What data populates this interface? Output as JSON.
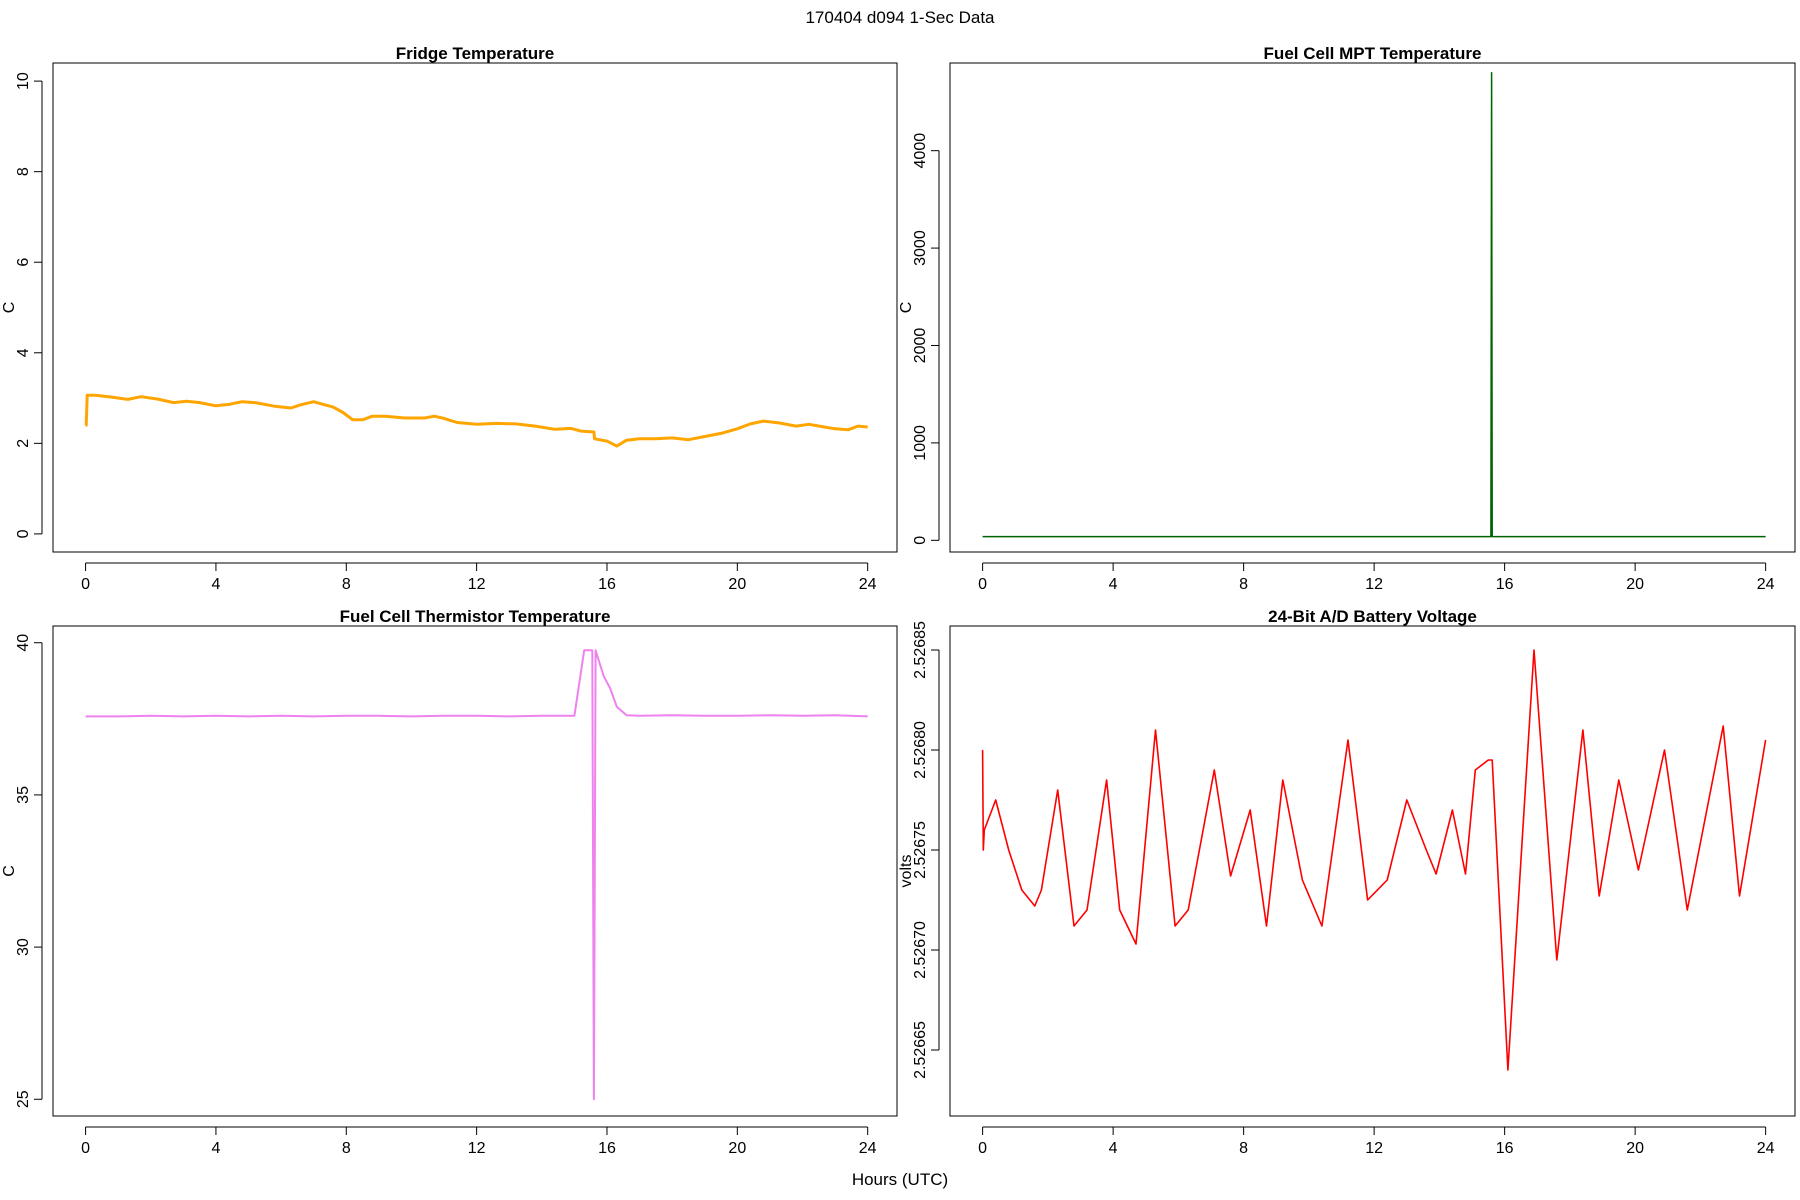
{
  "figure": {
    "title": "170404   d094   1-Sec Data",
    "xlabel": "Hours (UTC)"
  },
  "chart_data": [
    {
      "type": "line",
      "title": "Fridge Temperature",
      "xlabel": "",
      "ylabel": "C",
      "color": "#FFA500",
      "stroke": 3,
      "xlim": [
        -1,
        24.9
      ],
      "ylim": [
        -0.4,
        10.4
      ],
      "xticks": [
        0,
        4,
        8,
        12,
        16,
        20,
        24
      ],
      "yticks": [
        0,
        2,
        4,
        6,
        8,
        10
      ],
      "grid": false,
      "x": [
        0,
        0.02,
        0.05,
        0.3,
        0.8,
        1.3,
        1.7,
        2.2,
        2.7,
        3.1,
        3.5,
        4.0,
        4.4,
        4.8,
        5.2,
        5.8,
        6.3,
        6.6,
        7.0,
        7.3,
        7.6,
        7.9,
        8.2,
        8.5,
        8.8,
        9.2,
        9.8,
        10.4,
        10.7,
        11.0,
        11.4,
        12.0,
        12.6,
        13.2,
        13.8,
        14.4,
        14.9,
        15.2,
        15.6,
        15.62,
        16.0,
        16.3,
        16.6,
        17.0,
        17.5,
        18.0,
        18.5,
        19.0,
        19.5,
        20.0,
        20.4,
        20.8,
        21.3,
        21.8,
        22.2,
        22.6,
        23.0,
        23.4,
        23.7,
        24.0
      ],
      "y": [
        2.4,
        2.4,
        3.06,
        3.06,
        3.02,
        2.97,
        3.03,
        2.98,
        2.9,
        2.93,
        2.9,
        2.83,
        2.86,
        2.92,
        2.9,
        2.82,
        2.78,
        2.85,
        2.92,
        2.86,
        2.8,
        2.68,
        2.52,
        2.52,
        2.6,
        2.6,
        2.56,
        2.56,
        2.6,
        2.55,
        2.46,
        2.42,
        2.44,
        2.43,
        2.38,
        2.31,
        2.33,
        2.27,
        2.25,
        2.1,
        2.05,
        1.94,
        2.07,
        2.1,
        2.1,
        2.12,
        2.08,
        2.15,
        2.22,
        2.32,
        2.43,
        2.49,
        2.45,
        2.38,
        2.42,
        2.37,
        2.32,
        2.3,
        2.38,
        2.36
      ]
    },
    {
      "type": "line",
      "title": "Fuel Cell MPT Temperature",
      "xlabel": "",
      "ylabel": "C",
      "color": "#006400",
      "stroke": 1.5,
      "xlim": [
        -1,
        24.9
      ],
      "ylim": [
        -120,
        4900
      ],
      "xticks": [
        0,
        4,
        8,
        12,
        16,
        20,
        24
      ],
      "yticks": [
        0,
        1000,
        2000,
        3000,
        4000
      ],
      "grid": false,
      "x": [
        0,
        15.58,
        15.6,
        15.62,
        24
      ],
      "y": [
        38,
        38,
        4800,
        38,
        38
      ]
    },
    {
      "type": "line",
      "title": "Fuel Cell Thermistor Temperature",
      "xlabel": "",
      "ylabel": "C",
      "color": "#EE82EE",
      "stroke": 2,
      "xlim": [
        -1,
        24.9
      ],
      "ylim": [
        24.45,
        40.55
      ],
      "xticks": [
        0,
        4,
        8,
        12,
        16,
        20,
        24
      ],
      "yticks": [
        25,
        30,
        35,
        40
      ],
      "grid": false,
      "x": [
        0,
        1,
        2,
        3,
        4,
        5,
        6,
        7,
        8,
        9,
        10,
        11,
        12,
        13,
        14,
        15.0,
        15.3,
        15.55,
        15.6,
        15.65,
        15.9,
        16.1,
        16.3,
        16.6,
        17.0,
        18,
        19,
        20,
        21,
        22,
        23,
        24
      ],
      "y": [
        37.58,
        37.58,
        37.6,
        37.58,
        37.6,
        37.58,
        37.6,
        37.58,
        37.6,
        37.6,
        37.58,
        37.6,
        37.6,
        37.58,
        37.6,
        37.6,
        39.75,
        39.75,
        25.0,
        39.75,
        38.9,
        38.5,
        37.9,
        37.62,
        37.6,
        37.62,
        37.6,
        37.6,
        37.62,
        37.6,
        37.62,
        37.58
      ]
    },
    {
      "type": "line",
      "title": "24-Bit A/D Battery Voltage",
      "xlabel": "",
      "ylabel": "volts",
      "color": "#FF0000",
      "stroke": 1.6,
      "xlim": [
        -1,
        24.9
      ],
      "ylim": [
        2.526617,
        2.526862
      ],
      "xticks": [
        0,
        4,
        8,
        12,
        16,
        20,
        24
      ],
      "yticks": [
        2.52665,
        2.5267,
        2.52675,
        2.5268,
        2.52685
      ],
      "ytick_labels": [
        "2.52665",
        "2.52670",
        "2.52675",
        "2.52680",
        "2.52685"
      ],
      "grid": false,
      "x": [
        0,
        0.02,
        0.05,
        0.4,
        0.8,
        1.2,
        1.6,
        1.8,
        2.3,
        2.8,
        3.2,
        3.8,
        4.2,
        4.7,
        5.3,
        5.9,
        6.3,
        7.1,
        7.6,
        8.2,
        8.7,
        9.2,
        9.8,
        10.4,
        11.2,
        11.8,
        12.4,
        13.0,
        13.6,
        13.9,
        14.4,
        14.8,
        15.1,
        15.5,
        15.62,
        16.1,
        16.9,
        17.6,
        18.4,
        18.9,
        19.5,
        20.1,
        20.9,
        21.6,
        22.7,
        23.2,
        24.0
      ],
      "y": [
        2.5268,
        2.52675,
        2.52676,
        2.526775,
        2.52675,
        2.52673,
        2.526722,
        2.52673,
        2.52678,
        2.526712,
        2.52672,
        2.526785,
        2.52672,
        2.526703,
        2.52681,
        2.526712,
        2.52672,
        2.52679,
        2.526737,
        2.52677,
        2.526712,
        2.526785,
        2.526735,
        2.526712,
        2.526805,
        2.526725,
        2.526735,
        2.526775,
        2.52675,
        2.526738,
        2.52677,
        2.526738,
        2.52679,
        2.526795,
        2.526795,
        2.52664,
        2.52685,
        2.526695,
        2.52681,
        2.526727,
        2.526785,
        2.52674,
        2.5268,
        2.52672,
        2.526812,
        2.526727,
        2.526805
      ]
    }
  ]
}
